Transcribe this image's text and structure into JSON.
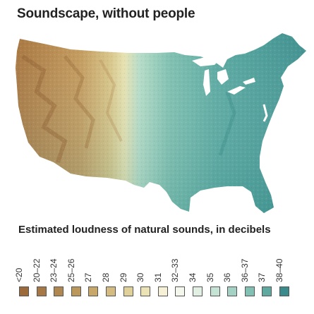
{
  "title": "Soundscape, without people",
  "map": {
    "region": "Contiguous United States",
    "palette_note": "brown (quiet west) to teal (louder east)"
  },
  "legend": {
    "title": "Estimated loudness of natural sounds, in decibels",
    "items": [
      {
        "label": "<20",
        "color": "#9c6b3c"
      },
      {
        "label": "20–22",
        "color": "#a67845"
      },
      {
        "label": "23–24",
        "color": "#b0874f"
      },
      {
        "label": "25–26",
        "color": "#bc975b"
      },
      {
        "label": "27",
        "color": "#c8a86a"
      },
      {
        "label": "28",
        "color": "#d4bc80"
      },
      {
        "label": "29",
        "color": "#e0d09a"
      },
      {
        "label": "30",
        "color": "#ebe2b6"
      },
      {
        "label": "31",
        "color": "#f5f0d6"
      },
      {
        "label": "32–33",
        "color": "#f4f7ec"
      },
      {
        "label": "34",
        "color": "#e2f0e4"
      },
      {
        "label": "35",
        "color": "#c4e3d5"
      },
      {
        "label": "36",
        "color": "#a3d2c4"
      },
      {
        "label": "36–37",
        "color": "#82c0b3"
      },
      {
        "label": "37",
        "color": "#60a9a1"
      },
      {
        "label": "38–40",
        "color": "#3a8c8c"
      }
    ]
  }
}
